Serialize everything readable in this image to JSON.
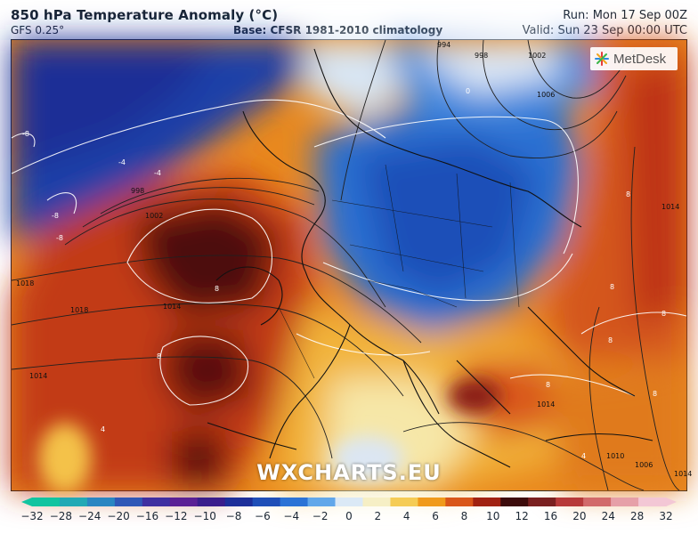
{
  "header": {
    "title": "850 hPa Temperature Anomaly (°C)",
    "model": "GFS 0.25°",
    "base": "Base: CFSR 1981-2010 climatology",
    "run": "Run: Mon 17 Sep 00Z",
    "valid": "Valid: Sun 23 Sep 00:00 UTC"
  },
  "logo": {
    "text": "MetDesk",
    "icon": "metdesk-star-icon"
  },
  "watermark": "WXCHARTS.EU",
  "map_labels": [
    "-8",
    "-8",
    "-4",
    "-4",
    "0",
    "4",
    "4",
    "8",
    "8",
    "8",
    "8",
    "8",
    "8",
    "8",
    "8",
    "-8",
    "994",
    "998",
    "1002",
    "1006",
    "998",
    "1002",
    "1014",
    "1018",
    "1018",
    "1014",
    "1014",
    "1014",
    "1010",
    "1006",
    "1014"
  ],
  "colorbar": {
    "ticks": [
      "−32",
      "−28",
      "−24",
      "−20",
      "−16",
      "−12",
      "−10",
      "−8",
      "−6",
      "−4",
      "−2",
      "0",
      "2",
      "4",
      "6",
      "8",
      "10",
      "12",
      "16",
      "20",
      "24",
      "28",
      "32"
    ],
    "colors": [
      "#12c4a0",
      "#22a9b5",
      "#2a86c2",
      "#3057b7",
      "#3f2fa1",
      "#5a2195",
      "#3a1e8c",
      "#1d2f9a",
      "#1f4fb8",
      "#2b73d6",
      "#61a7ea",
      "#dbe9f6",
      "#f6efc5",
      "#f5cc55",
      "#f09a1c",
      "#d9561a",
      "#a12212",
      "#3d0c0c",
      "#7a2020",
      "#b73a3a",
      "#d26a6a",
      "#e6a0a8",
      "#f3c7d5"
    ]
  }
}
